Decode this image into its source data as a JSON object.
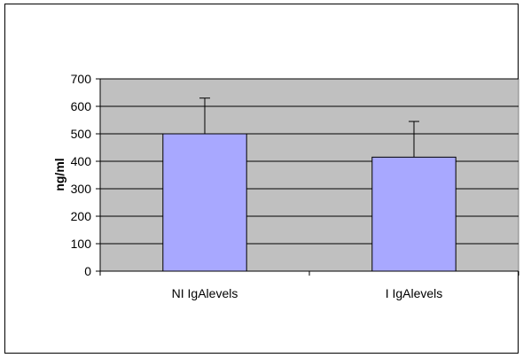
{
  "chart_data": {
    "type": "bar",
    "title": "",
    "xlabel": "",
    "ylabel": "ng/ml",
    "categories": [
      "NIIgAlevels",
      "IIgAlevels"
    ],
    "category_labels": [
      "NI IgAlevels",
      "I IgAlevels"
    ],
    "values": [
      500,
      415
    ],
    "error_plus": [
      130,
      130
    ],
    "ylim": [
      0,
      700
    ],
    "yticks": [
      0,
      100,
      200,
      300,
      400,
      500,
      600,
      700
    ],
    "grid": true,
    "legend": "none",
    "colors": {
      "bar_fill": "#a8a8ff",
      "plot_background": "#c0c0c0",
      "gridline": "#000000",
      "axis": "#000000"
    }
  }
}
